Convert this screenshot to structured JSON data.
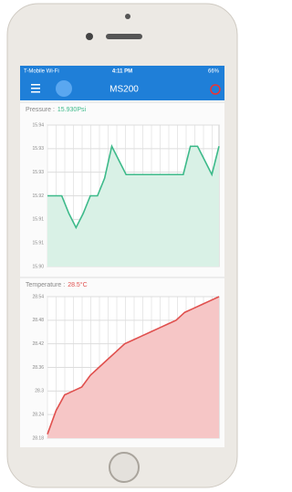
{
  "status_bar": {
    "carrier": "T-Mobile Wi-Fi",
    "time": "4:11 PM",
    "battery": "66%"
  },
  "app_bar": {
    "title": "MS200"
  },
  "chart_data": [
    {
      "type": "line",
      "title": "Pressure :",
      "annotation": "15.930Psi",
      "color": "#3dba8a",
      "fill": "#d9f1e6",
      "area": true,
      "grid": true,
      "ylim": [
        15.9,
        15.94
      ],
      "yticks": [
        {
          "value": 15.9,
          "label": "15.90"
        },
        {
          "value": 15.90667,
          "label": "15.91"
        },
        {
          "value": 15.91333,
          "label": "15.91"
        },
        {
          "value": 15.92,
          "label": "15.92"
        },
        {
          "value": 15.92667,
          "label": "15.93"
        },
        {
          "value": 15.93333,
          "label": "15.93"
        },
        {
          "value": 15.94,
          "label": "15.94"
        }
      ],
      "values": [
        15.92,
        15.92,
        15.92,
        15.915,
        15.911,
        15.915,
        15.92,
        15.92,
        15.925,
        15.934,
        15.93,
        15.926,
        15.926,
        15.926,
        15.926,
        15.926,
        15.926,
        15.926,
        15.926,
        15.926,
        15.934,
        15.934,
        15.93,
        15.926,
        15.934
      ]
    },
    {
      "type": "line",
      "title": "Temperature :",
      "annotation": "28.5°C",
      "color": "#e0504e",
      "fill": "#f6c6c6",
      "area": true,
      "grid": true,
      "ylim": [
        28.18,
        28.54
      ],
      "yticks": [
        28.18,
        28.24,
        28.3,
        28.36,
        28.42,
        28.48,
        28.54
      ],
      "values": [
        28.19,
        28.25,
        28.29,
        28.3,
        28.31,
        28.34,
        28.36,
        28.38,
        28.4,
        28.42,
        28.43,
        28.44,
        28.45,
        28.46,
        28.47,
        28.48,
        28.5,
        28.51,
        28.52,
        28.53,
        28.54
      ]
    }
  ]
}
